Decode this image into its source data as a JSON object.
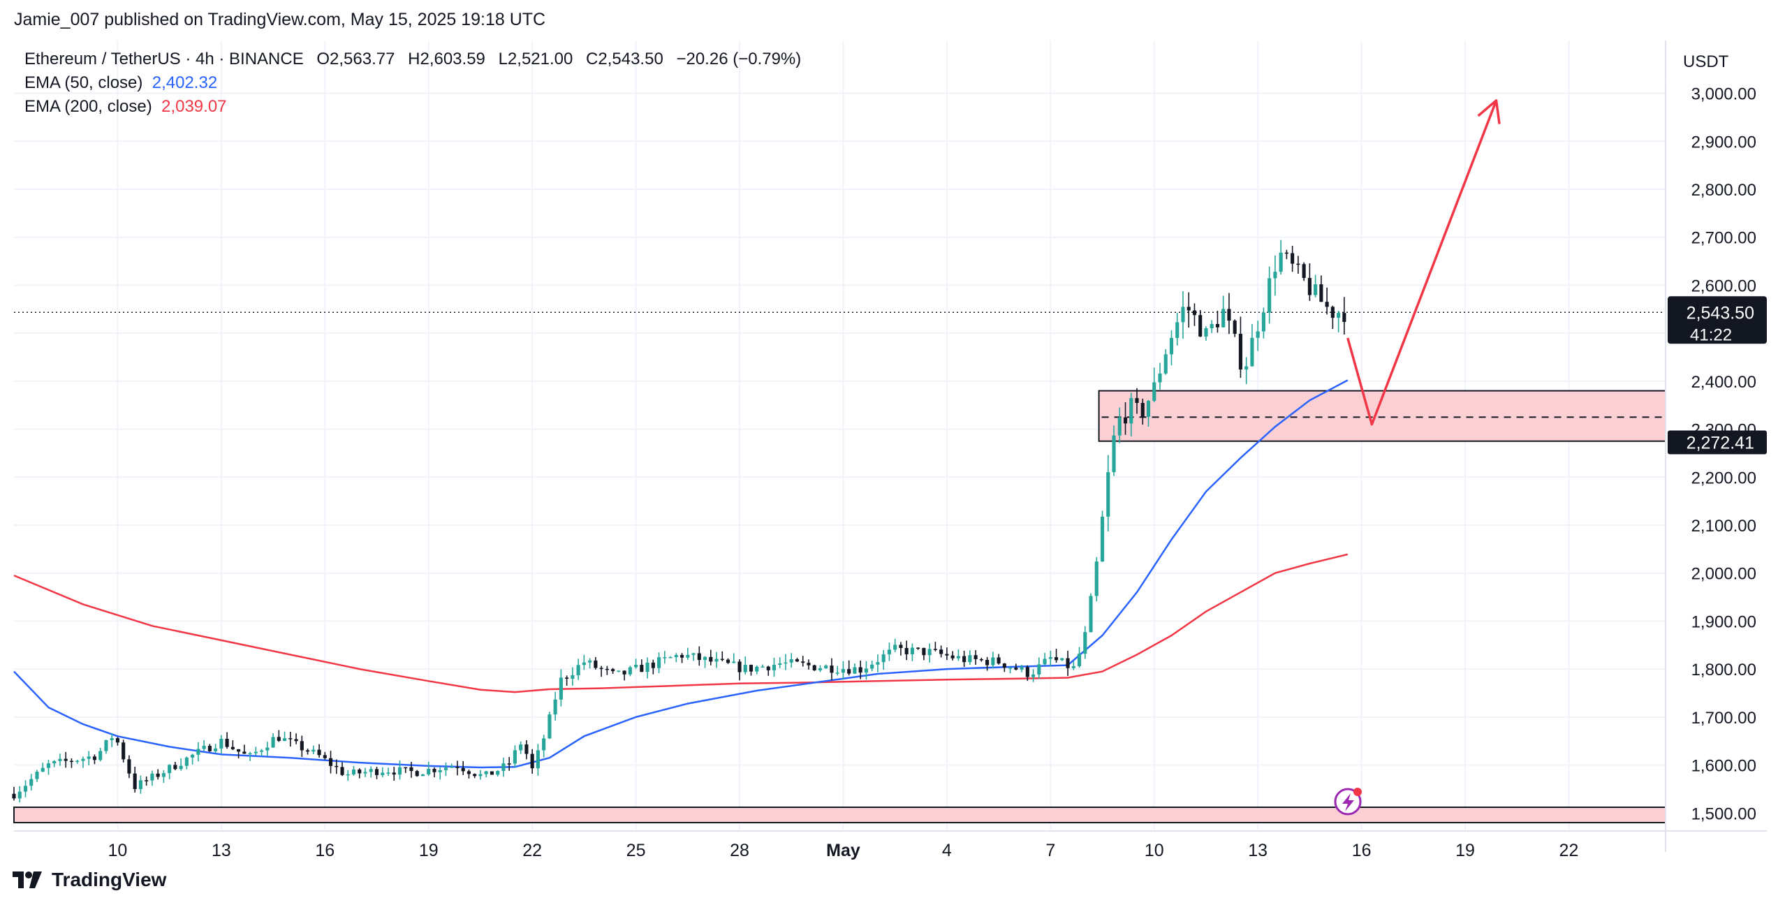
{
  "publisher_line": "Jamie_007 published on TradingView.com, May 15, 2025 19:18 UTC",
  "footer": {
    "brand": "TradingView"
  },
  "legend": {
    "symbol": "Ethereum / TetherUS · 4h · BINANCE",
    "open": "O2,563.77",
    "high": "H2,603.59",
    "low": "L2,521.00",
    "close": "C2,543.50",
    "change": "−20.26 (−0.79%)",
    "ema50_label": "EMA (50, close)",
    "ema50_value": "2,402.32",
    "ema200_label": "EMA (200, close)",
    "ema200_value": "2,039.07"
  },
  "colors": {
    "up": "#26a69a",
    "down": "#131722",
    "ema50": "#2962ff",
    "ema200": "#f23645",
    "zone_fill": "#fbd0d5",
    "projection": "#f23645",
    "grid": "#f0f3fa"
  },
  "chart_data": {
    "type": "candlestick",
    "title": "Ethereum / TetherUS · 4h · BINANCE",
    "currency": "USDT",
    "ylim": [
      1480,
      3110
    ],
    "y_ticks": [
      1500,
      1600,
      1700,
      1800,
      1900,
      2000,
      2100,
      2200,
      2300,
      2400,
      2500,
      2600,
      2700,
      2800,
      2900,
      3000
    ],
    "y_tick_labels": [
      "1,500.00",
      "1,600.00",
      "1,700.00",
      "1,800.00",
      "1,900.00",
      "2,000.00",
      "2,100.00",
      "2,200.00",
      "2,300.00",
      "2,400.00",
      "2,500.00",
      "2,600.00",
      "2,700.00",
      "2,800.00",
      "2,900.00",
      "3,000.00"
    ],
    "x_ticks": [
      {
        "t": 10,
        "label": "10"
      },
      {
        "t": 13,
        "label": "13"
      },
      {
        "t": 16,
        "label": "16"
      },
      {
        "t": 19,
        "label": "19"
      },
      {
        "t": 22,
        "label": "22"
      },
      {
        "t": 25,
        "label": "25"
      },
      {
        "t": 28,
        "label": "28"
      },
      {
        "t": 31,
        "label": "May"
      },
      {
        "t": 34,
        "label": "4"
      },
      {
        "t": 37,
        "label": "7"
      },
      {
        "t": 40,
        "label": "10"
      },
      {
        "t": 43,
        "label": "13"
      },
      {
        "t": 46,
        "label": "16"
      },
      {
        "t": 49,
        "label": "19"
      },
      {
        "t": 52,
        "label": "22"
      }
    ],
    "x_axis_note": "t = days since Apr 0 (Apr 10 = 10, May 1 = 31)",
    "xlim": [
      7.0,
      54.8
    ],
    "price_line": {
      "value": 2543.5,
      "label": "2,543.50",
      "countdown": "41:22"
    },
    "zone_label": {
      "value": 2272.41,
      "label": "2,272.41"
    },
    "zones": [
      {
        "t_start": 38.4,
        "top": 2380,
        "bottom": 2275,
        "mid": 2325
      },
      {
        "t_start": 7.0,
        "top": 1512,
        "bottom": 1480,
        "mid": null
      }
    ],
    "projection": [
      {
        "t": 45.6,
        "v": 2490
      },
      {
        "t": 46.3,
        "v": 2310
      },
      {
        "t": 49.9,
        "v": 2985
      }
    ],
    "keypoints": [
      [
        7.0,
        1540
      ],
      [
        8.0,
        1600
      ],
      [
        9.4,
        1620
      ],
      [
        9.9,
        1665
      ],
      [
        10.5,
        1555
      ],
      [
        11.3,
        1585
      ],
      [
        12.3,
        1625
      ],
      [
        13.0,
        1650
      ],
      [
        13.8,
        1615
      ],
      [
        14.6,
        1660
      ],
      [
        15.8,
        1620
      ],
      [
        16.6,
        1580
      ],
      [
        17.7,
        1590
      ],
      [
        18.6,
        1585
      ],
      [
        19.8,
        1600
      ],
      [
        20.6,
        1575
      ],
      [
        21.3,
        1600
      ],
      [
        21.7,
        1650
      ],
      [
        22.0,
        1590
      ],
      [
        22.4,
        1670
      ],
      [
        22.8,
        1775
      ],
      [
        23.5,
        1815
      ],
      [
        24.4,
        1785
      ],
      [
        25.4,
        1808
      ],
      [
        26.3,
        1830
      ],
      [
        27.2,
        1815
      ],
      [
        28.2,
        1800
      ],
      [
        29.2,
        1812
      ],
      [
        30.3,
        1805
      ],
      [
        31.5,
        1800
      ],
      [
        32.5,
        1840
      ],
      [
        33.5,
        1835
      ],
      [
        34.5,
        1820
      ],
      [
        35.5,
        1815
      ],
      [
        36.4,
        1790
      ],
      [
        37.0,
        1822
      ],
      [
        37.7,
        1800
      ],
      [
        38.0,
        1870
      ],
      [
        38.3,
        2000
      ],
      [
        38.6,
        2170
      ],
      [
        38.9,
        2310
      ],
      [
        39.3,
        2345
      ],
      [
        39.6,
        2330
      ],
      [
        40.0,
        2385
      ],
      [
        40.4,
        2480
      ],
      [
        40.9,
        2560
      ],
      [
        41.5,
        2495
      ],
      [
        42.0,
        2545
      ],
      [
        42.6,
        2425
      ],
      [
        43.1,
        2545
      ],
      [
        43.6,
        2668
      ],
      [
        44.1,
        2628
      ],
      [
        44.6,
        2585
      ],
      [
        45.1,
        2545
      ],
      [
        45.6,
        2545
      ]
    ],
    "ema50": [
      [
        7.0,
        1795
      ],
      [
        8.0,
        1720
      ],
      [
        9.0,
        1685
      ],
      [
        10.0,
        1660
      ],
      [
        11.5,
        1638
      ],
      [
        13.0,
        1622
      ],
      [
        15.0,
        1615
      ],
      [
        17.0,
        1605
      ],
      [
        19.0,
        1598
      ],
      [
        20.5,
        1595
      ],
      [
        21.5,
        1596
      ],
      [
        22.5,
        1615
      ],
      [
        23.5,
        1660
      ],
      [
        25.0,
        1700
      ],
      [
        26.5,
        1728
      ],
      [
        28.5,
        1755
      ],
      [
        30.5,
        1775
      ],
      [
        32.0,
        1790
      ],
      [
        34.0,
        1800
      ],
      [
        36.0,
        1805
      ],
      [
        37.5,
        1808
      ],
      [
        38.5,
        1870
      ],
      [
        39.5,
        1960
      ],
      [
        40.5,
        2070
      ],
      [
        41.5,
        2170
      ],
      [
        42.5,
        2240
      ],
      [
        43.5,
        2305
      ],
      [
        44.5,
        2360
      ],
      [
        45.6,
        2402
      ]
    ],
    "ema200": [
      [
        7.0,
        1995
      ],
      [
        9.0,
        1935
      ],
      [
        11.0,
        1890
      ],
      [
        13.0,
        1860
      ],
      [
        15.0,
        1830
      ],
      [
        17.0,
        1800
      ],
      [
        19.0,
        1775
      ],
      [
        20.5,
        1757
      ],
      [
        21.5,
        1752
      ],
      [
        22.5,
        1758
      ],
      [
        24.0,
        1760
      ],
      [
        26.0,
        1765
      ],
      [
        28.0,
        1770
      ],
      [
        30.0,
        1772
      ],
      [
        32.0,
        1775
      ],
      [
        34.0,
        1778
      ],
      [
        36.0,
        1780
      ],
      [
        37.5,
        1782
      ],
      [
        38.5,
        1795
      ],
      [
        39.5,
        1830
      ],
      [
        40.5,
        1870
      ],
      [
        41.5,
        1920
      ],
      [
        42.5,
        1960
      ],
      [
        43.5,
        2000
      ],
      [
        44.5,
        2020
      ],
      [
        45.6,
        2039
      ]
    ]
  }
}
